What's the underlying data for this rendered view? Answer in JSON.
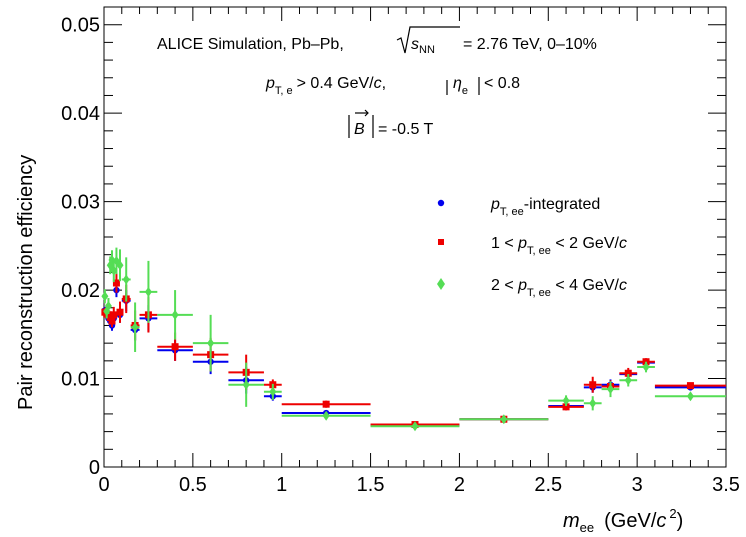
{
  "chart_data": {
    "type": "scatter",
    "annotations": {
      "line1": "ALICE Simulation, Pb–Pb,",
      "line1_energy": "= 2.76 TeV, 0–10%",
      "sqrt_s": "s",
      "sqrt_s_sub": "NN",
      "line2_pt": "p",
      "line2_pt_sub": "T, e",
      "line2_rest": "> 0.4 GeV/",
      "line2_c": "c",
      "line2_comma": ",",
      "line2_eta": "η",
      "line2_eta_sub": "e",
      "line2_eta_rest": "< 0.8",
      "line3_b": "B",
      "line3_rest": "= -0.5 T"
    },
    "ylabel": "Pair reconstruction efficiency",
    "xlabel": {
      "m": "m",
      "sub": "ee",
      "unit": "(GeV/",
      "c": "c",
      "sup": "2",
      "close": ")"
    },
    "xlim": [
      0,
      3.5
    ],
    "ylim": [
      0,
      0.052
    ],
    "xticks": [
      "0",
      "0.5",
      "1",
      "1.5",
      "2",
      "2.5",
      "3",
      "3.5"
    ],
    "yticks": [
      "0",
      "0.01",
      "0.02",
      "0.03",
      "0.04",
      "0.05"
    ],
    "legend": {
      "position": "right",
      "entries": [
        {
          "p": "p",
          "sub": "T, ee",
          "text": "-integrated",
          "pre": "",
          "c": ""
        },
        {
          "pre": "1 < ",
          "p": "p",
          "sub": "T, ee",
          "text": " < 2 GeV/",
          "c": "c"
        },
        {
          "pre": "2 < ",
          "p": "p",
          "sub": "T, ee",
          "text": " < 4 GeV/",
          "c": "c"
        }
      ]
    },
    "series": [
      {
        "color": "#0000ee",
        "marker": "circle",
        "points": [
          {
            "x": 0.005,
            "xlo": 0.0,
            "xhi": 0.01,
            "y": 0.0177,
            "err": 0.0004
          },
          {
            "x": 0.015,
            "xlo": 0.01,
            "xhi": 0.02,
            "y": 0.0172,
            "err": 0.0004
          },
          {
            "x": 0.025,
            "xlo": 0.02,
            "xhi": 0.03,
            "y": 0.0168,
            "err": 0.0005
          },
          {
            "x": 0.035,
            "xlo": 0.03,
            "xhi": 0.04,
            "y": 0.0165,
            "err": 0.0005
          },
          {
            "x": 0.045,
            "xlo": 0.04,
            "xhi": 0.05,
            "y": 0.016,
            "err": 0.0006
          },
          {
            "x": 0.055,
            "xlo": 0.05,
            "xhi": 0.06,
            "y": 0.0168,
            "err": 0.0007
          },
          {
            "x": 0.07,
            "xlo": 0.06,
            "xhi": 0.08,
            "y": 0.02,
            "err": 0.0008
          },
          {
            "x": 0.09,
            "xlo": 0.08,
            "xhi": 0.1,
            "y": 0.0172,
            "err": 0.0009
          },
          {
            "x": 0.125,
            "xlo": 0.1,
            "xhi": 0.15,
            "y": 0.0188,
            "err": 0.0012
          },
          {
            "x": 0.175,
            "xlo": 0.15,
            "xhi": 0.2,
            "y": 0.0155,
            "err": 0.0012
          },
          {
            "x": 0.25,
            "xlo": 0.2,
            "xhi": 0.3,
            "y": 0.0168,
            "err": 0.0015
          },
          {
            "x": 0.4,
            "xlo": 0.3,
            "xhi": 0.5,
            "y": 0.0132,
            "err": 0.0012
          },
          {
            "x": 0.6,
            "xlo": 0.5,
            "xhi": 0.7,
            "y": 0.0119,
            "err": 0.0014
          },
          {
            "x": 0.8,
            "xlo": 0.7,
            "xhi": 0.9,
            "y": 0.0098,
            "err": 0.0015
          },
          {
            "x": 0.95,
            "xlo": 0.9,
            "xhi": 1.0,
            "y": 0.008,
            "err": 0.0005
          },
          {
            "x": 1.25,
            "xlo": 1.0,
            "xhi": 1.5,
            "y": 0.0061,
            "err": 0.0003
          },
          {
            "x": 1.75,
            "xlo": 1.5,
            "xhi": 2.0,
            "y": 0.0047,
            "err": 0.0002
          },
          {
            "x": 2.25,
            "xlo": 2.0,
            "xhi": 2.5,
            "y": 0.0054,
            "err": 0.0002
          },
          {
            "x": 2.6,
            "xlo": 2.5,
            "xhi": 2.7,
            "y": 0.0069,
            "err": 0.0004
          },
          {
            "x": 2.75,
            "xlo": 2.7,
            "xhi": 2.8,
            "y": 0.009,
            "err": 0.0006
          },
          {
            "x": 2.85,
            "xlo": 2.8,
            "xhi": 2.9,
            "y": 0.0093,
            "err": 0.0006
          },
          {
            "x": 2.95,
            "xlo": 2.9,
            "xhi": 3.0,
            "y": 0.0105,
            "err": 0.0005
          },
          {
            "x": 3.05,
            "xlo": 3.0,
            "xhi": 3.1,
            "y": 0.0118,
            "err": 0.0004
          },
          {
            "x": 3.3,
            "xlo": 3.1,
            "xhi": 3.5,
            "y": 0.009,
            "err": 0.0003
          }
        ]
      },
      {
        "color": "#ee0000",
        "marker": "square",
        "points": [
          {
            "x": 0.005,
            "xlo": 0.0,
            "xhi": 0.01,
            "y": 0.0175,
            "err": 0.0005
          },
          {
            "x": 0.015,
            "xlo": 0.01,
            "xhi": 0.02,
            "y": 0.0173,
            "err": 0.0005
          },
          {
            "x": 0.025,
            "xlo": 0.02,
            "xhi": 0.03,
            "y": 0.0172,
            "err": 0.0006
          },
          {
            "x": 0.035,
            "xlo": 0.03,
            "xhi": 0.04,
            "y": 0.0169,
            "err": 0.0006
          },
          {
            "x": 0.045,
            "xlo": 0.04,
            "xhi": 0.05,
            "y": 0.0165,
            "err": 0.0007
          },
          {
            "x": 0.055,
            "xlo": 0.05,
            "xhi": 0.06,
            "y": 0.0172,
            "err": 0.0009
          },
          {
            "x": 0.07,
            "xlo": 0.06,
            "xhi": 0.08,
            "y": 0.0208,
            "err": 0.0011
          },
          {
            "x": 0.09,
            "xlo": 0.08,
            "xhi": 0.1,
            "y": 0.0175,
            "err": 0.0012
          },
          {
            "x": 0.125,
            "xlo": 0.1,
            "xhi": 0.15,
            "y": 0.019,
            "err": 0.0016
          },
          {
            "x": 0.175,
            "xlo": 0.15,
            "xhi": 0.2,
            "y": 0.016,
            "err": 0.0017
          },
          {
            "x": 0.25,
            "xlo": 0.2,
            "xhi": 0.3,
            "y": 0.0172,
            "err": 0.002
          },
          {
            "x": 0.4,
            "xlo": 0.3,
            "xhi": 0.5,
            "y": 0.0136,
            "err": 0.0016
          },
          {
            "x": 0.6,
            "xlo": 0.5,
            "xhi": 0.7,
            "y": 0.0127,
            "err": 0.0019
          },
          {
            "x": 0.8,
            "xlo": 0.7,
            "xhi": 0.9,
            "y": 0.0107,
            "err": 0.002
          },
          {
            "x": 0.95,
            "xlo": 0.9,
            "xhi": 1.0,
            "y": 0.0093,
            "err": 0.0006
          },
          {
            "x": 1.25,
            "xlo": 1.0,
            "xhi": 1.5,
            "y": 0.0071,
            "err": 0.0004
          },
          {
            "x": 1.75,
            "xlo": 1.5,
            "xhi": 2.0,
            "y": 0.0048,
            "err": 0.0002
          },
          {
            "x": 2.25,
            "xlo": 2.0,
            "xhi": 2.5,
            "y": 0.0054,
            "err": 0.0002
          },
          {
            "x": 2.6,
            "xlo": 2.5,
            "xhi": 2.7,
            "y": 0.0068,
            "err": 0.0004
          },
          {
            "x": 2.75,
            "xlo": 2.7,
            "xhi": 2.8,
            "y": 0.0093,
            "err": 0.0009
          },
          {
            "x": 2.85,
            "xlo": 2.8,
            "xhi": 2.9,
            "y": 0.0091,
            "err": 0.0007
          },
          {
            "x": 2.95,
            "xlo": 2.9,
            "xhi": 3.0,
            "y": 0.0106,
            "err": 0.0006
          },
          {
            "x": 3.05,
            "xlo": 3.0,
            "xhi": 3.1,
            "y": 0.0119,
            "err": 0.0004
          },
          {
            "x": 3.3,
            "xlo": 3.1,
            "xhi": 3.5,
            "y": 0.0092,
            "err": 0.0003
          }
        ]
      },
      {
        "color": "#55dd55",
        "marker": "diamond",
        "points": [
          {
            "x": 0.005,
            "xlo": 0.0,
            "xhi": 0.01,
            "y": 0.0193,
            "err": 0.0008
          },
          {
            "x": 0.015,
            "xlo": 0.01,
            "xhi": 0.02,
            "y": 0.0176,
            "err": 0.0008
          },
          {
            "x": 0.025,
            "xlo": 0.02,
            "xhi": 0.03,
            "y": 0.0182,
            "err": 0.0009
          },
          {
            "x": 0.035,
            "xlo": 0.03,
            "xhi": 0.04,
            "y": 0.0228,
            "err": 0.001
          },
          {
            "x": 0.045,
            "xlo": 0.04,
            "xhi": 0.05,
            "y": 0.0234,
            "err": 0.0011
          },
          {
            "x": 0.055,
            "xlo": 0.05,
            "xhi": 0.06,
            "y": 0.0222,
            "err": 0.0013
          },
          {
            "x": 0.07,
            "xlo": 0.06,
            "xhi": 0.08,
            "y": 0.0233,
            "err": 0.0015
          },
          {
            "x": 0.09,
            "xlo": 0.08,
            "xhi": 0.1,
            "y": 0.0228,
            "err": 0.0018
          },
          {
            "x": 0.125,
            "xlo": 0.1,
            "xhi": 0.15,
            "y": 0.0212,
            "err": 0.0025
          },
          {
            "x": 0.175,
            "xlo": 0.15,
            "xhi": 0.2,
            "y": 0.0158,
            "err": 0.0028
          },
          {
            "x": 0.25,
            "xlo": 0.2,
            "xhi": 0.3,
            "y": 0.0198,
            "err": 0.0035
          },
          {
            "x": 0.4,
            "xlo": 0.3,
            "xhi": 0.5,
            "y": 0.0172,
            "err": 0.0028
          },
          {
            "x": 0.6,
            "xlo": 0.5,
            "xhi": 0.7,
            "y": 0.014,
            "err": 0.0032
          },
          {
            "x": 0.8,
            "xlo": 0.7,
            "xhi": 0.9,
            "y": 0.0093,
            "err": 0.0025
          },
          {
            "x": 0.95,
            "xlo": 0.9,
            "xhi": 1.0,
            "y": 0.0085,
            "err": 0.0009
          },
          {
            "x": 1.25,
            "xlo": 1.0,
            "xhi": 1.5,
            "y": 0.0058,
            "err": 0.0004
          },
          {
            "x": 1.75,
            "xlo": 1.5,
            "xhi": 2.0,
            "y": 0.0046,
            "err": 0.0003
          },
          {
            "x": 2.25,
            "xlo": 2.0,
            "xhi": 2.5,
            "y": 0.0054,
            "err": 0.0003
          },
          {
            "x": 2.6,
            "xlo": 2.5,
            "xhi": 2.7,
            "y": 0.0075,
            "err": 0.0006
          },
          {
            "x": 2.75,
            "xlo": 2.7,
            "xhi": 2.8,
            "y": 0.0072,
            "err": 0.0008
          },
          {
            "x": 2.85,
            "xlo": 2.8,
            "xhi": 2.9,
            "y": 0.0088,
            "err": 0.0009
          },
          {
            "x": 2.95,
            "xlo": 2.9,
            "xhi": 3.0,
            "y": 0.0098,
            "err": 0.0007
          },
          {
            "x": 3.05,
            "xlo": 3.0,
            "xhi": 3.1,
            "y": 0.0113,
            "err": 0.0006
          },
          {
            "x": 3.3,
            "xlo": 3.1,
            "xhi": 3.5,
            "y": 0.008,
            "err": 0.0004
          }
        ]
      }
    ]
  }
}
